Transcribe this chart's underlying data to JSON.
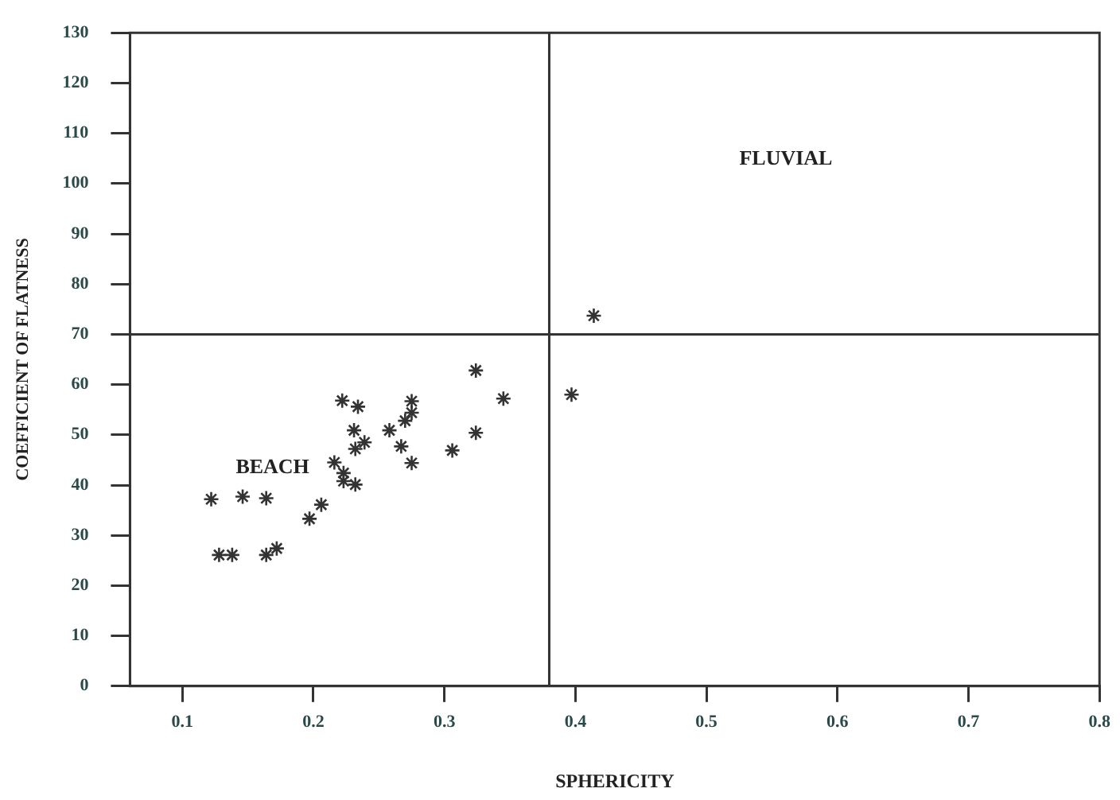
{
  "chart_data": {
    "type": "scatter",
    "xlabel": "SPHERICITY",
    "ylabel": "COEFFICIENT OF FLATNESS",
    "marker": "cross",
    "grid": false,
    "legend": false,
    "xlim": [
      0.06,
      0.8
    ],
    "xticks": [
      0.1,
      0.2,
      0.3,
      0.4,
      0.5,
      0.6,
      0.7,
      0.8
    ],
    "ylim": [
      0,
      130
    ],
    "yticks": [
      0,
      10,
      20,
      30,
      40,
      50,
      60,
      70,
      80,
      90,
      100,
      110,
      120,
      130
    ],
    "ref_lines": [
      {
        "axis": "x",
        "value": 0.38,
        "label": null
      },
      {
        "axis": "y",
        "value": 70,
        "label": null
      }
    ],
    "annotations": [
      "FLUVIAL",
      "BEACH"
    ],
    "series": [
      {
        "color": "#333333",
        "x": [
          0.122,
          0.146,
          0.164,
          0.128,
          0.138,
          0.164,
          0.172,
          0.197,
          0.206,
          0.216,
          0.223,
          0.223,
          0.232,
          0.222,
          0.234,
          0.231,
          0.232,
          0.239,
          0.258,
          0.267,
          0.27,
          0.275,
          0.275,
          0.275,
          0.306,
          0.324,
          0.324,
          0.345,
          0.397,
          0.414
        ],
        "values": [
          37.2,
          37.7,
          37.4,
          26.1,
          26.1,
          26.1,
          27.4,
          33.3,
          36.1,
          44.5,
          42.4,
          40.8,
          40.1,
          56.8,
          55.6,
          50.9,
          47.2,
          48.5,
          50.9,
          47.7,
          52.8,
          54.4,
          56.7,
          44.4,
          46.9,
          62.8,
          50.4,
          57.2,
          58,
          73.7
        ]
      }
    ]
  }
}
